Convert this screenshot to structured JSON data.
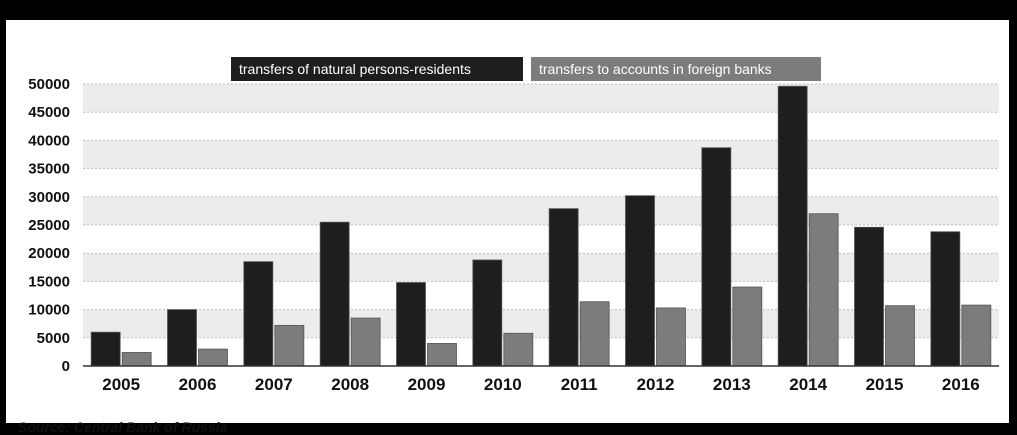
{
  "chart_data": {
    "type": "bar",
    "categories": [
      "2005",
      "2006",
      "2007",
      "2008",
      "2009",
      "2010",
      "2011",
      "2012",
      "2013",
      "2014",
      "2015",
      "2016"
    ],
    "series": [
      {
        "name": "transfers of natural persons-residents",
        "values": [
          6000,
          10000,
          18500,
          25500,
          14800,
          18800,
          27900,
          30200,
          38700,
          49600,
          24600,
          23800
        ],
        "color": "#1e1e1e"
      },
      {
        "name": "transfers to accounts in foreign banks",
        "values": [
          2400,
          3000,
          7200,
          8500,
          4000,
          5800,
          11400,
          10300,
          14000,
          27000,
          10700,
          10800
        ],
        "color": "#7c7c7c"
      }
    ],
    "ylim": [
      0,
      50000
    ],
    "yticks": [
      "0",
      "5000",
      "10000",
      "15000",
      "20000",
      "25000",
      "30000",
      "35000",
      "40000",
      "45000",
      "50000"
    ],
    "grid": true,
    "legend_position": "top",
    "source": "Source: Central Bank of Russia"
  }
}
